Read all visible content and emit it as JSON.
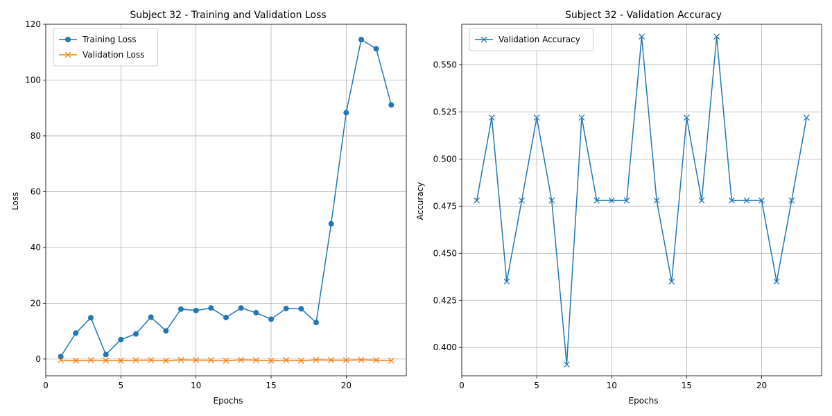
{
  "chart_data": [
    {
      "type": "line",
      "title": "Subject 32 - Training and Validation Loss",
      "xlabel": "Epochs",
      "ylabel": "Loss",
      "xlim": [
        0,
        24
      ],
      "ylim": [
        -6,
        120
      ],
      "xticks": [
        0,
        5,
        10,
        15,
        20
      ],
      "yticks": [
        0,
        20,
        40,
        60,
        80,
        100,
        120
      ],
      "grid": true,
      "legend_position": "top-left",
      "x": [
        1,
        2,
        3,
        4,
        5,
        6,
        7,
        8,
        9,
        10,
        11,
        12,
        13,
        14,
        15,
        16,
        17,
        18,
        19,
        20,
        21,
        22,
        23
      ],
      "series": [
        {
          "name": "Training Loss",
          "color": "#1f77b4",
          "marker": "circle",
          "values": [
            0.9,
            9.3,
            14.8,
            1.6,
            7.0,
            9.0,
            15.0,
            10.1,
            17.9,
            17.4,
            18.3,
            14.9,
            18.3,
            16.6,
            14.3,
            18.1,
            18.0,
            13.1,
            48.5,
            88.3,
            114.5,
            111.2,
            91.1
          ]
        },
        {
          "name": "Validation Loss",
          "color": "#ff7f0e",
          "marker": "x",
          "values": [
            -0.4,
            -0.6,
            -0.4,
            -0.5,
            -0.6,
            -0.4,
            -0.4,
            -0.6,
            -0.3,
            -0.4,
            -0.4,
            -0.6,
            -0.3,
            -0.4,
            -0.6,
            -0.4,
            -0.6,
            -0.3,
            -0.4,
            -0.4,
            -0.3,
            -0.4,
            -0.6
          ]
        }
      ]
    },
    {
      "type": "line",
      "title": "Subject 32 - Validation Accuracy",
      "xlabel": "Epochs",
      "ylabel": "Accuracy",
      "xlim": [
        0,
        24
      ],
      "ylim": [
        0.385,
        0.5715
      ],
      "xticks": [
        0,
        5,
        10,
        15,
        20
      ],
      "yticks": [
        0.4,
        0.425,
        0.45,
        0.475,
        0.5,
        0.525,
        0.55
      ],
      "grid": true,
      "legend_position": "top-left",
      "x": [
        1,
        2,
        3,
        4,
        5,
        6,
        7,
        8,
        9,
        10,
        11,
        12,
        13,
        14,
        15,
        16,
        17,
        18,
        19,
        20,
        21,
        22,
        23
      ],
      "series": [
        {
          "name": "Validation Accuracy",
          "color": "#1f77b4",
          "marker": "x",
          "values": [
            0.478,
            0.522,
            0.435,
            0.478,
            0.522,
            0.478,
            0.391,
            0.522,
            0.478,
            0.478,
            0.478,
            0.565,
            0.478,
            0.435,
            0.522,
            0.478,
            0.565,
            0.478,
            0.478,
            0.478,
            0.435,
            0.478,
            0.522
          ]
        }
      ]
    }
  ]
}
